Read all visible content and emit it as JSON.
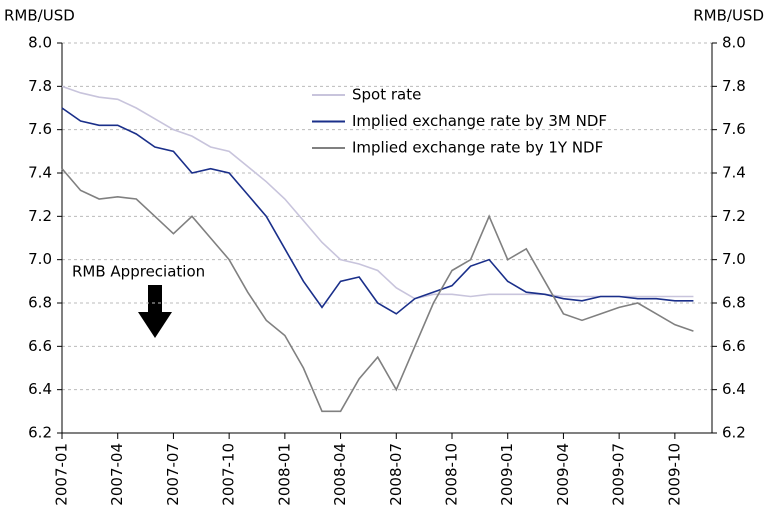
{
  "chart_data": {
    "type": "line",
    "y_label": "RMB/USD",
    "y2_label": "RMB/USD",
    "annotation": "RMB Appreciation",
    "x": [
      "2007-01",
      "2007-02",
      "2007-03",
      "2007-04",
      "2007-05",
      "2007-06",
      "2007-07",
      "2007-08",
      "2007-09",
      "2007-10",
      "2007-11",
      "2007-12",
      "2008-01",
      "2008-02",
      "2008-03",
      "2008-04",
      "2008-05",
      "2008-06",
      "2008-07",
      "2008-08",
      "2008-09",
      "2008-10",
      "2008-11",
      "2008-12",
      "2009-01",
      "2009-02",
      "2009-03",
      "2009-04",
      "2009-05",
      "2009-06",
      "2009-07",
      "2009-08",
      "2009-09",
      "2009-10",
      "2009-11"
    ],
    "series": [
      {
        "name": "Spot rate",
        "color": "#c8c4dc",
        "values": [
          7.8,
          7.77,
          7.75,
          7.74,
          7.7,
          7.65,
          7.6,
          7.57,
          7.52,
          7.5,
          7.43,
          7.36,
          7.28,
          7.18,
          7.08,
          7.0,
          6.98,
          6.95,
          6.87,
          6.82,
          6.84,
          6.84,
          6.83,
          6.84,
          6.84,
          6.84,
          6.84,
          6.83,
          6.83,
          6.83,
          6.83,
          6.83,
          6.83,
          6.83,
          6.83
        ]
      },
      {
        "name": "Implied exchange rate by 3M NDF",
        "color": "#1a2f8a",
        "values": [
          7.7,
          7.64,
          7.62,
          7.62,
          7.58,
          7.52,
          7.5,
          7.4,
          7.42,
          7.4,
          7.3,
          7.2,
          7.05,
          6.9,
          6.78,
          6.9,
          6.92,
          6.8,
          6.75,
          6.82,
          6.85,
          6.88,
          6.97,
          7.0,
          6.9,
          6.85,
          6.84,
          6.82,
          6.81,
          6.83,
          6.83,
          6.82,
          6.82,
          6.81,
          6.81
        ]
      },
      {
        "name": "Implied exchange rate by 1Y NDF",
        "color": "#808080",
        "values": [
          7.42,
          7.32,
          7.28,
          7.29,
          7.28,
          7.2,
          7.12,
          7.2,
          7.1,
          7.0,
          6.85,
          6.72,
          6.65,
          6.5,
          6.3,
          6.3,
          6.45,
          6.55,
          6.4,
          6.6,
          6.8,
          6.95,
          7.0,
          7.2,
          7.0,
          7.05,
          6.9,
          6.75,
          6.72,
          6.75,
          6.78,
          6.8,
          6.75,
          6.7,
          6.67
        ]
      }
    ],
    "xlim": [
      "2007-01",
      "2009-12"
    ],
    "xticks": [
      "2007-01",
      "2007-04",
      "2007-07",
      "2007-10",
      "2008-01",
      "2008-04",
      "2008-07",
      "2008-10",
      "2009-01",
      "2009-04",
      "2009-07",
      "2009-10"
    ],
    "ylim": [
      6.2,
      8.0
    ],
    "yticks": [
      6.2,
      6.4,
      6.6,
      6.8,
      {
        "value": 7,
        "label": "7.0"
      },
      7.2,
      7.4,
      7.6,
      7.8,
      {
        "value": 8,
        "label": "8.0"
      }
    ],
    "y2lim": [
      6.2,
      8.0
    ],
    "y2ticks": [
      6.2,
      6.4,
      6.6,
      6.8,
      {
        "value": 7,
        "label": "7.0"
      },
      7.2,
      7.4,
      7.6,
      7.8,
      {
        "value": 8,
        "label": "8.0"
      }
    ],
    "grid": true
  }
}
